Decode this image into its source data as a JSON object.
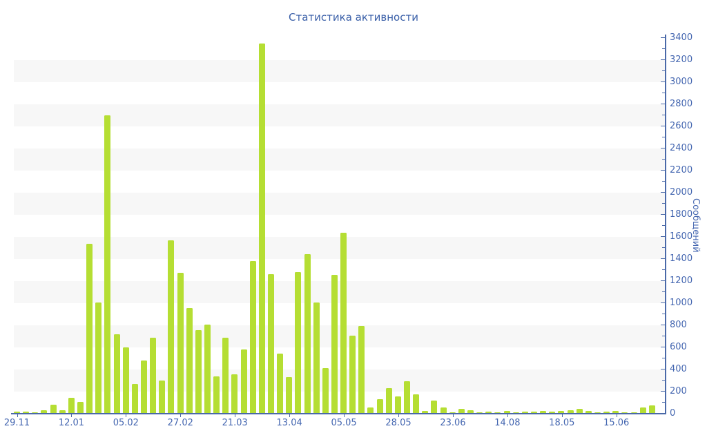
{
  "page": {
    "title": "Статистика активности"
  },
  "chart_data": {
    "type": "bar",
    "title": "Статистика активности",
    "ylabel": "Сообщений",
    "xlabel": "",
    "ylim": [
      0,
      3400
    ],
    "y_tick_step": 200,
    "y_minor_tick_step": 100,
    "legend": "none",
    "grid": "alternating horizontal gray bands every 200 units",
    "axis_position": "y-axis on right, x-axis on bottom",
    "x_tick_labels": [
      "29.11",
      "12.01",
      "05.02",
      "27.02",
      "21.03",
      "13.04",
      "05.05",
      "28.05",
      "23.06",
      "14.08",
      "18.05",
      "15.06"
    ],
    "x_tick_bar_indices": [
      0,
      6,
      12,
      18,
      24,
      30,
      36,
      42,
      48,
      54,
      60,
      66
    ],
    "values": [
      20,
      20,
      15,
      30,
      80,
      35,
      145,
      105,
      1540,
      1010,
      2700,
      720,
      600,
      270,
      480,
      690,
      300,
      1570,
      1275,
      960,
      755,
      805,
      340,
      690,
      360,
      580,
      1385,
      3350,
      1265,
      545,
      335,
      1280,
      1445,
      1010,
      415,
      1255,
      1640,
      710,
      795,
      55,
      130,
      235,
      160,
      295,
      175,
      25,
      120,
      55,
      15,
      45,
      30,
      15,
      20,
      15,
      25,
      15,
      20,
      20,
      25,
      20,
      25,
      35,
      48,
      25,
      15,
      20,
      25,
      15,
      15,
      55,
      75,
      10
    ],
    "colors": {
      "bar": "#b5de33",
      "axis": "#4a69a8",
      "tick_label": "#4466b0",
      "title": "#3a5fa8",
      "band": "#f7f7f7",
      "background": "#ffffff"
    }
  }
}
